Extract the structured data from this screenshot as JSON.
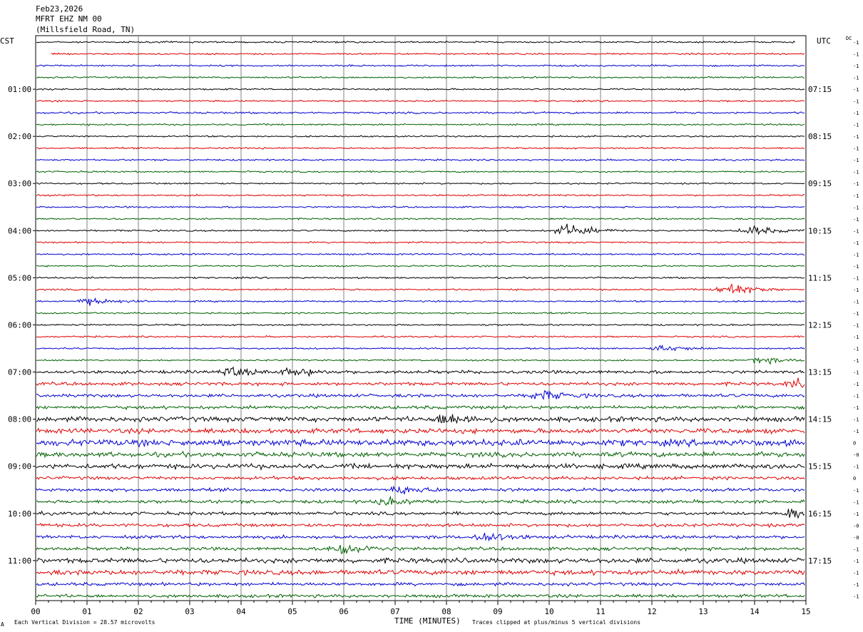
{
  "header": {
    "date": "Feb23,2026",
    "station": "MFRT EHZ NM 00",
    "location": "(Millsfield Road, TN)"
  },
  "left_zone_label": "CST",
  "right_zone_label": "UTC",
  "dc_label": "DC",
  "footer": {
    "x_axis_title": "TIME (MINUTES)",
    "scale_note": "Each Vertical Division =   28.57 microvolts",
    "clip_note": "Traces clipped at plus/minus 5 vertical divisions",
    "corner_mark": "A"
  },
  "colors": {
    "trace_cycle": [
      "#000000",
      "#e00000",
      "#0000d0",
      "#006000"
    ],
    "grid": "#808080"
  },
  "chart_data": {
    "type": "line",
    "x_range_minutes": [
      0,
      15
    ],
    "x_tick_labels": [
      "00",
      "01",
      "02",
      "03",
      "04",
      "05",
      "06",
      "07",
      "08",
      "09",
      "10",
      "11",
      "12",
      "13",
      "14",
      "15"
    ],
    "grid": true,
    "left_hour_labels": [
      "01:00",
      "02:00",
      "03:00",
      "04:00",
      "05:00",
      "06:00",
      "07:00",
      "08:00",
      "09:00",
      "10:00",
      "11:00"
    ],
    "right_hour_labels": [
      "07:15",
      "08:15",
      "09:15",
      "10:15",
      "11:15",
      "12:15",
      "13:15",
      "14:15",
      "15:15",
      "16:15",
      "17:15"
    ],
    "traces_per_hour": 4,
    "trace_count": 48,
    "dc_offsets": [
      "-1",
      "-1",
      "-1",
      "-1",
      "-1",
      "-1",
      "-1",
      "-1",
      "-1",
      "-1",
      "-1",
      "-1",
      "-1",
      "-1",
      "-1",
      "-1",
      "-1",
      "-1",
      "-1",
      "-1",
      "-1",
      "-1",
      "-1",
      "-1",
      "-1",
      "-1",
      "-1",
      "-1",
      "-1",
      "-1",
      "-1",
      "-1",
      "-1",
      "-1",
      "0",
      "-0",
      "-1",
      "0",
      "-1",
      "-1",
      "-1",
      "-0",
      "-0",
      "-1",
      "-1",
      "-1",
      "-1",
      "-1"
    ],
    "noise_levels": [
      1,
      1,
      1,
      1,
      1,
      1,
      1.2,
      1,
      1,
      1,
      1,
      1,
      1,
      1,
      1,
      1,
      1,
      1,
      1,
      1,
      1,
      1,
      1,
      1,
      1,
      1,
      1,
      1,
      2,
      2,
      2,
      2,
      3,
      3,
      4,
      3,
      3,
      2,
      2,
      2,
      2,
      2,
      2,
      2,
      3,
      3,
      2,
      2
    ],
    "events": [
      {
        "trace": 16,
        "minute": 10.3,
        "amp": 9
      },
      {
        "trace": 16,
        "minute": 13.9,
        "amp": 6
      },
      {
        "trace": 21,
        "minute": 13.4,
        "amp": 10
      },
      {
        "trace": 22,
        "minute": 1.0,
        "amp": 5
      },
      {
        "trace": 26,
        "minute": 12.2,
        "amp": 4
      },
      {
        "trace": 27,
        "minute": 14.1,
        "amp": 4
      },
      {
        "trace": 28,
        "minute": 3.8,
        "amp": 5
      },
      {
        "trace": 28,
        "minute": 5.0,
        "amp": 5
      },
      {
        "trace": 29,
        "minute": 14.8,
        "amp": 5
      },
      {
        "trace": 30,
        "minute": 9.8,
        "amp": 6
      },
      {
        "trace": 32,
        "minute": 8.0,
        "amp": 8
      },
      {
        "trace": 38,
        "minute": 7.1,
        "amp": 5
      },
      {
        "trace": 39,
        "minute": 6.8,
        "amp": 4
      },
      {
        "trace": 40,
        "minute": 14.8,
        "amp": 9
      },
      {
        "trace": 42,
        "minute": 8.7,
        "amp": 6
      },
      {
        "trace": 43,
        "minute": 5.9,
        "amp": 9
      }
    ]
  }
}
